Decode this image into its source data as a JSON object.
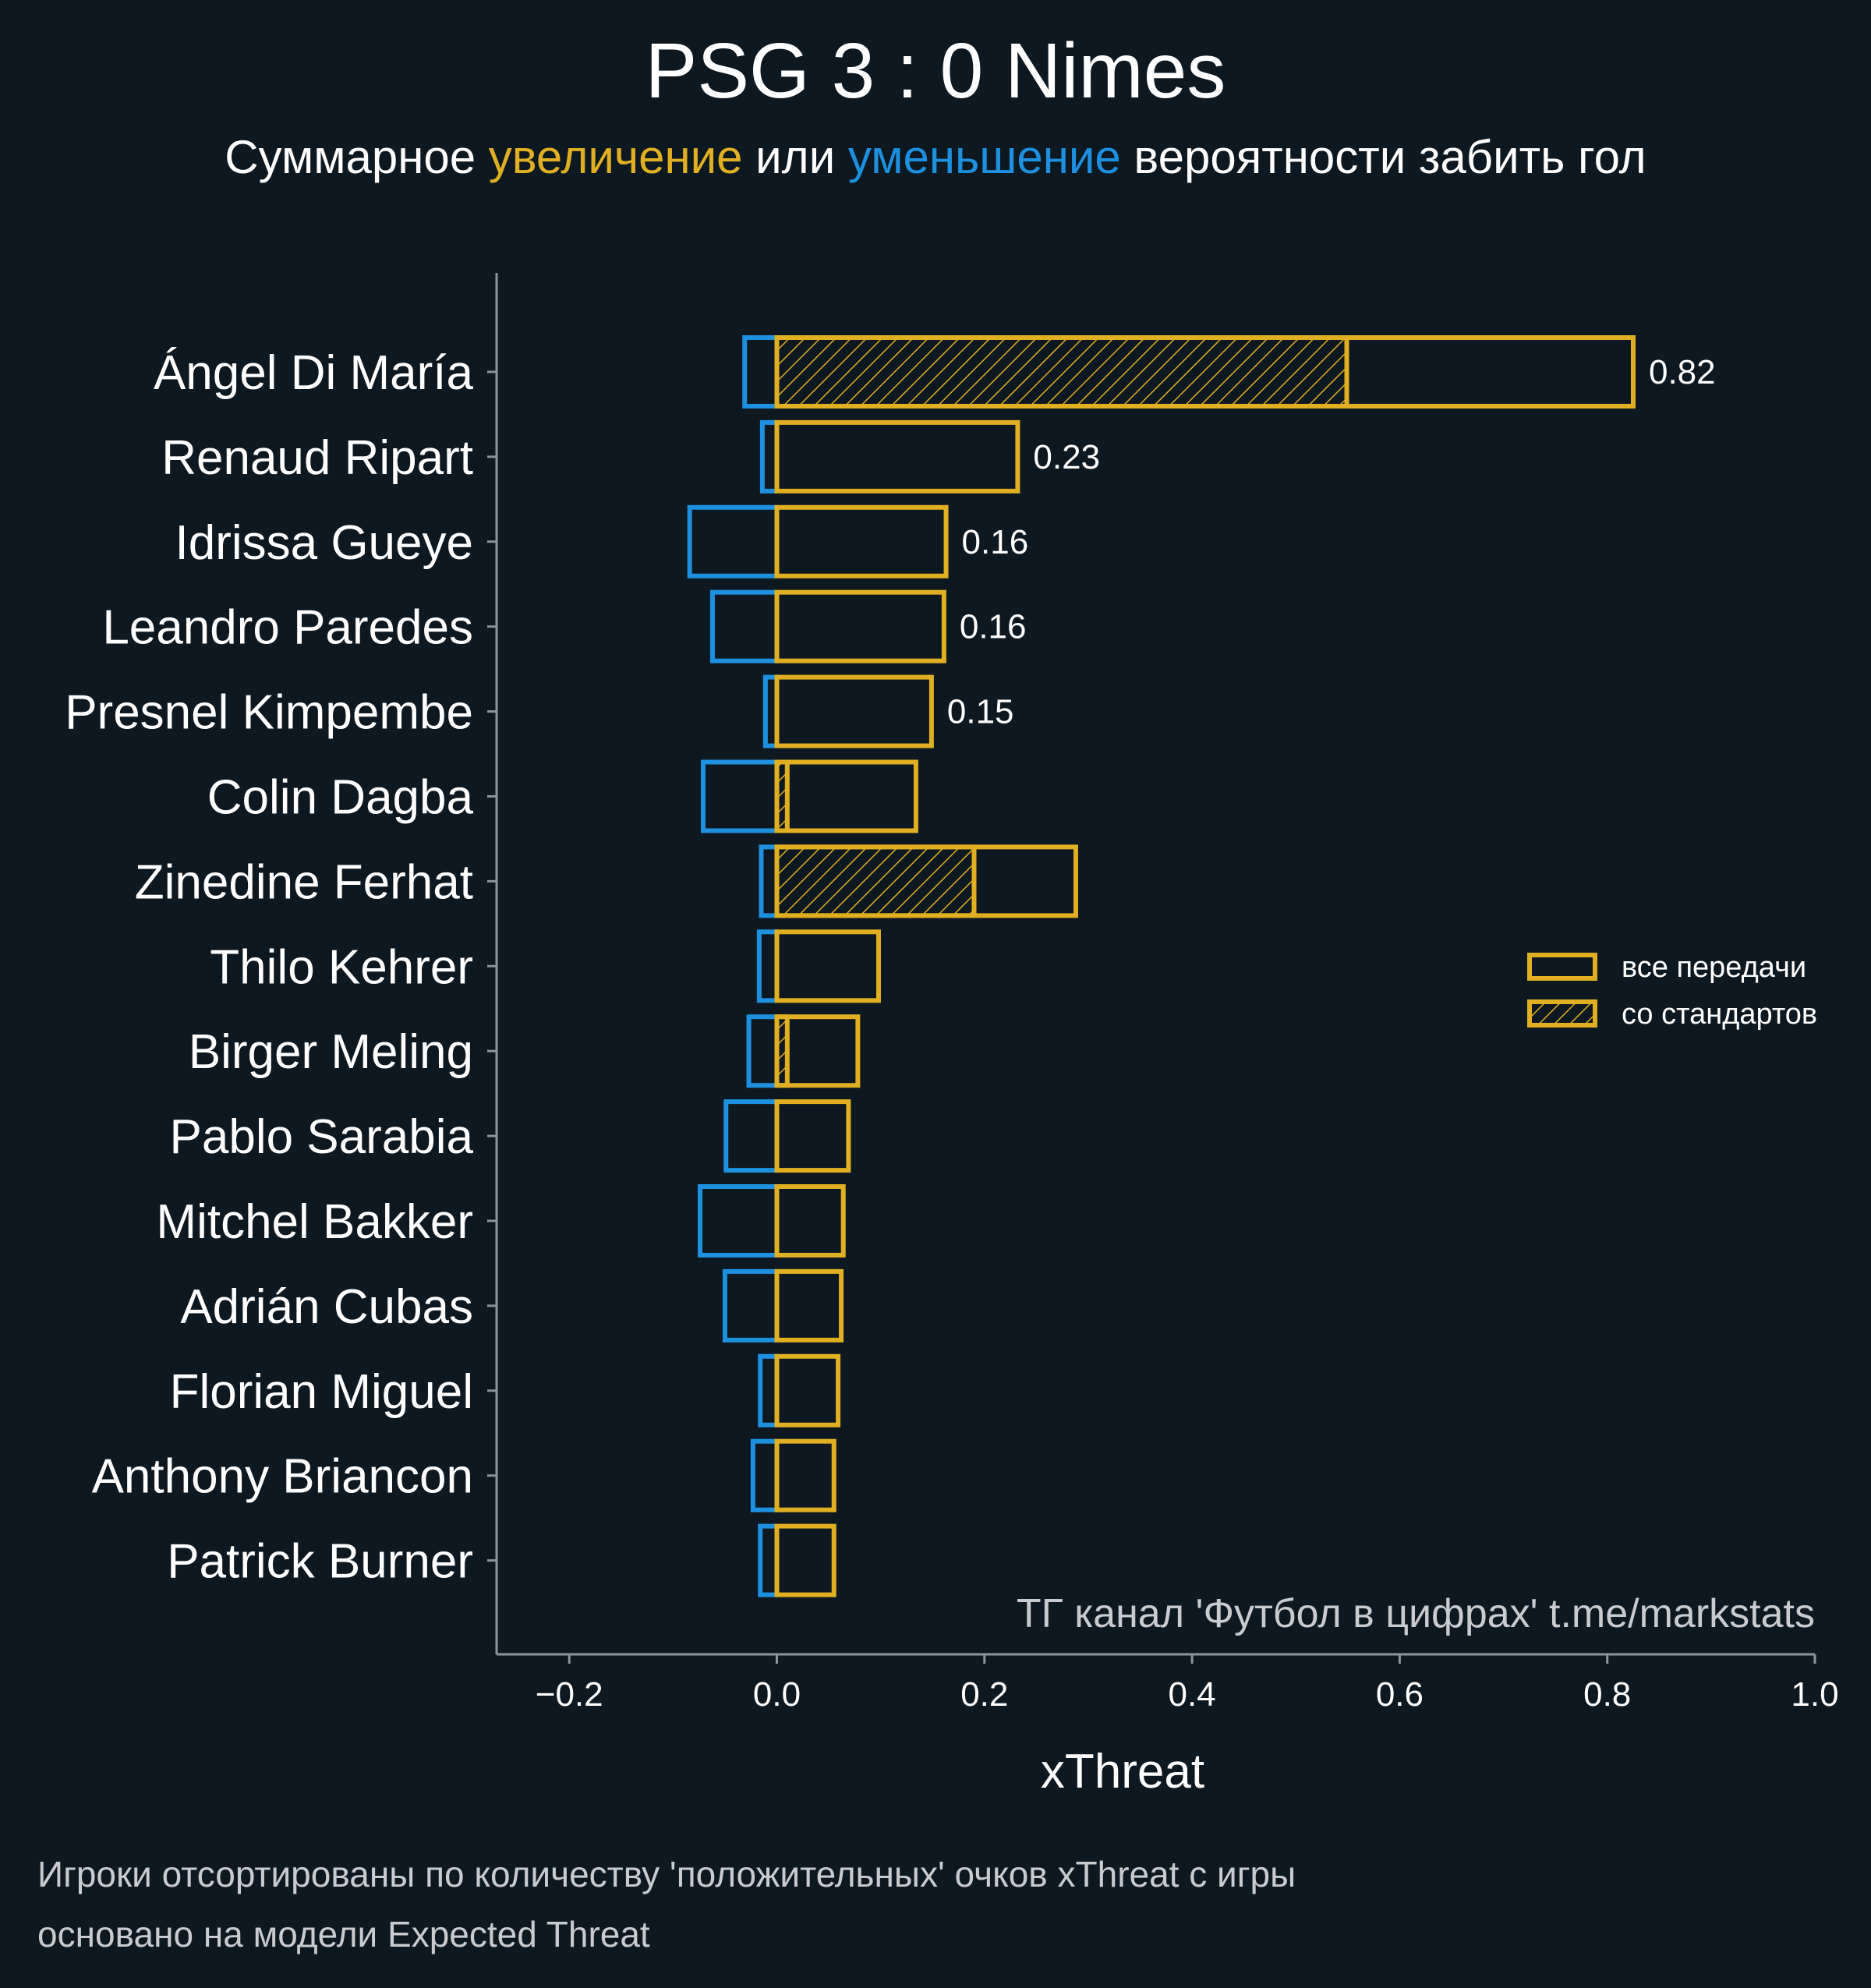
{
  "title": "PSG 3 : 0 Nimes",
  "subtitle": {
    "part1": "Суммарное ",
    "increase": "увеличение",
    "part2": " или ",
    "decrease": "уменьшение",
    "part3": " вероятности забить гол"
  },
  "colors": {
    "background": "#0e1820",
    "positive": "#e0b022",
    "negative": "#1e90e0",
    "text": "#ffffff",
    "muted": "#c8ccd0",
    "axis": "#8a969c"
  },
  "watermark": "ТГ канал 'Футбол в цифрах'  t.me/markstats",
  "footnote": {
    "line1": "Игроки отсортированы по количеству 'положительных' очков xThreat с игры",
    "line2": "основано на модели Expected Threat"
  },
  "legend": {
    "placement": "right",
    "all_passes": "все передачи",
    "set_pieces": "со стандартов"
  },
  "chart_data": {
    "type": "bar",
    "orientation": "horizontal",
    "xlabel": "xThreat",
    "ylabel": "",
    "xlim": [
      -0.27,
      1.0
    ],
    "xticks": [
      -0.2,
      0.0,
      0.2,
      0.4,
      0.6,
      0.8,
      1.0
    ],
    "xtick_labels": [
      "−0.2",
      "0.0",
      "0.2",
      "0.4",
      "0.6",
      "0.8",
      "1.0"
    ],
    "grid": false,
    "categories": [
      "Ángel Di María",
      "Renaud Ripart",
      "Idrissa Gueye",
      "Leandro Paredes",
      "Presnel Kimpembe",
      "Colin Dagba",
      "Zinedine Ferhat",
      "Thilo Kehrer",
      "Birger Meling",
      "Pablo Sarabia",
      "Mitchel Bakker",
      "Adrián Cubas",
      "Florian Miguel",
      "Anthony Briancon",
      "Patrick Burner"
    ],
    "series": [
      {
        "name": "все передачи",
        "values": [
          0.825,
          0.232,
          0.163,
          0.161,
          0.149,
          0.134,
          0.288,
          0.098,
          0.078,
          0.069,
          0.064,
          0.062,
          0.059,
          0.055,
          0.055
        ]
      },
      {
        "name": "со стандартов",
        "values": [
          0.549,
          0,
          0,
          0,
          0,
          0.01,
          0.19,
          0,
          0.01,
          0,
          0,
          0,
          0,
          0,
          0
        ]
      },
      {
        "name": "",
        "values": [
          -0.031,
          -0.014,
          -0.084,
          -0.062,
          -0.011,
          -0.071,
          -0.015,
          -0.017,
          -0.027,
          -0.049,
          -0.074,
          -0.05,
          -0.016,
          -0.023,
          -0.016
        ]
      }
    ],
    "data_labels": [
      "0.82",
      "0.23",
      "0.16",
      "0.16",
      "0.15",
      "",
      "",
      "",
      "",
      "",
      "",
      "",
      "",
      "",
      ""
    ]
  }
}
